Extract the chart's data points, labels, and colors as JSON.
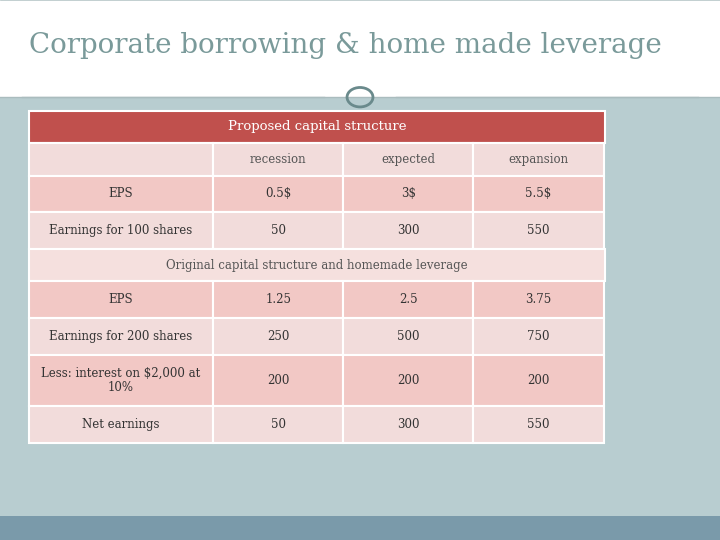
{
  "title": "Corporate borrowing & home made leverage",
  "title_color": "#7a9a9a",
  "title_bg": "#ffffff",
  "slide_bg": "#b8cdd0",
  "bottom_strip_color": "#7a9aaa",
  "header_bg": "#c0504d",
  "header_text": "Proposed capital structure",
  "header_fg": "#ffffff",
  "col_header_row": [
    "",
    "recession",
    "expected",
    "expansion"
  ],
  "section1_rows": [
    [
      "EPS",
      "0.5$",
      "3$",
      "5.5$"
    ],
    [
      "Earnings for 100 shares",
      "50",
      "300",
      "550"
    ]
  ],
  "section_divider": "Original capital structure and homemade leverage",
  "section2_rows": [
    [
      "EPS",
      "1.25",
      "2.5",
      "3.75"
    ],
    [
      "Earnings for 200 shares",
      "250",
      "500",
      "750"
    ],
    [
      "Less: interest on $2,000 at\n10%",
      "200",
      "200",
      "200"
    ],
    [
      "Net earnings",
      "50",
      "300",
      "550"
    ]
  ],
  "row_color_light": "#f2dcdb",
  "row_color_dark": "#f2c8c5",
  "divider_bg": "#f5e0de",
  "divider_fg": "#555555",
  "col_header_fg": "#555555",
  "cell_fg": "#333333",
  "border_color": "#ffffff",
  "line_color": "#aabcbe",
  "circle_color": "#6a8a8c"
}
